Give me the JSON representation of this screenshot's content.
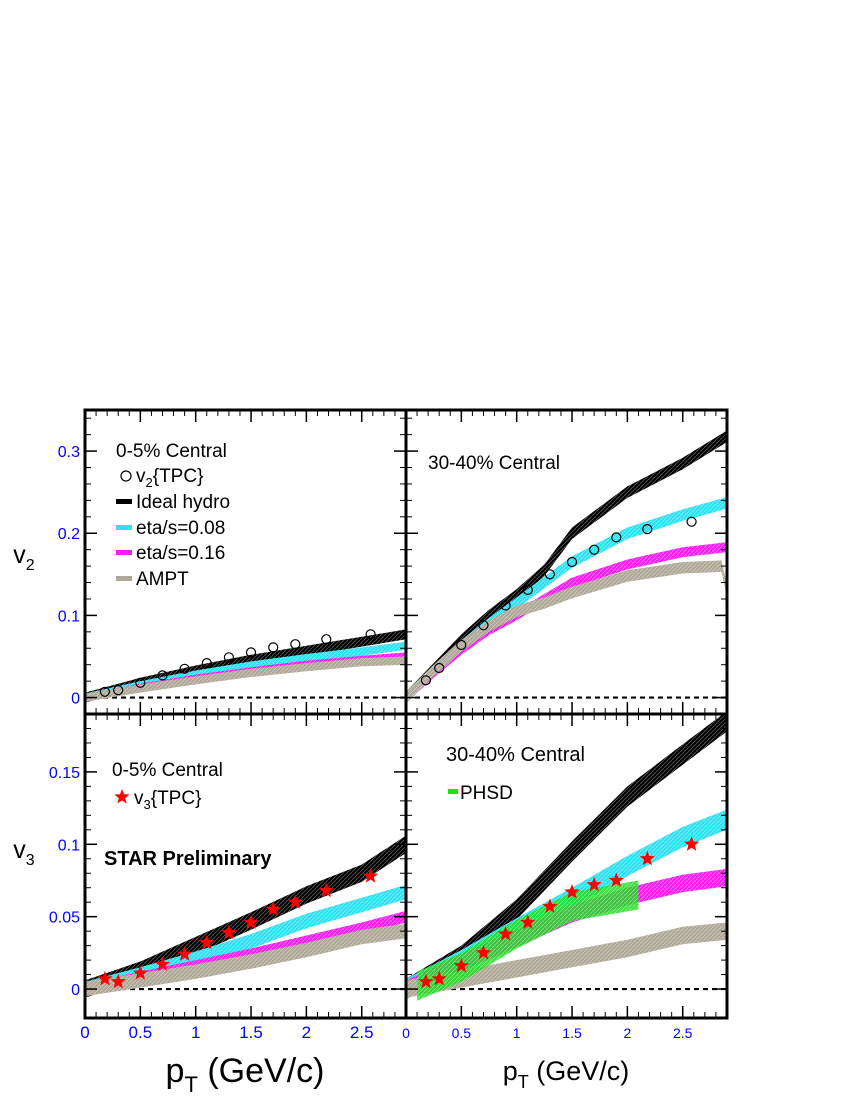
{
  "colors": {
    "frame": "#000000",
    "tick_label": "#0000ff",
    "ideal_hydro": "#000000",
    "eta_008": "#33e0f0",
    "eta_016": "#f020f0",
    "ampt": "#b0a898",
    "phsd": "#22dd22",
    "data_v2": "#000000",
    "data_v3": "#ff0000"
  },
  "axes": {
    "v2_label": "v",
    "v2_label_sub": "2",
    "v3_label": "v",
    "v3_label_sub": "3",
    "x_left_label_main": "p",
    "x_left_label_sub": "T",
    "x_left_label_unit": " (GeV/c)",
    "x_right_label_main": "p",
    "x_right_label_sub": "T",
    "x_right_label_unit": " (GeV/c)"
  },
  "texts": {
    "tl_centrality": "0-5% Central",
    "tr_centrality": "30-40% Central",
    "bl_centrality": "0-5% Central",
    "br_centrality": "30-40% Central",
    "star_preliminary": "STAR Preliminary"
  },
  "legend_top": [
    {
      "label_main": "v",
      "label_sub": "2",
      "label_rest": "{TPC}",
      "marker": "circle"
    },
    {
      "label_main": "Ideal hydro",
      "label_sub": "",
      "label_rest": "",
      "marker": "line",
      "color_key": "ideal_hydro"
    },
    {
      "label_main": "eta/s=0.08",
      "label_sub": "",
      "label_rest": "",
      "marker": "line",
      "color_key": "eta_008"
    },
    {
      "label_main": "eta/s=0.16",
      "label_sub": "",
      "label_rest": "",
      "marker": "line",
      "color_key": "eta_016"
    },
    {
      "label_main": "AMPT",
      "label_sub": "",
      "label_rest": "",
      "marker": "line",
      "color_key": "ampt"
    }
  ],
  "legend_bl": [
    {
      "label_main": "v",
      "label_sub": "3",
      "label_rest": "{TPC}",
      "marker": "star"
    }
  ],
  "legend_br": [
    {
      "label_main": "PHSD",
      "label_sub": "",
      "label_rest": "",
      "marker": "line",
      "color_key": "phsd"
    }
  ],
  "chart_data": [
    {
      "id": "v2_0_5",
      "type": "line",
      "row": 0,
      "col": 0,
      "xlim": [
        0,
        2.9
      ],
      "ylim": [
        -0.02,
        0.35
      ],
      "yticks": [
        0,
        0.1,
        0.2,
        0.3
      ],
      "ytick_labels": [
        "0",
        "0.1",
        "0.2",
        "0.3"
      ],
      "xticks": [
        0,
        0.5,
        1,
        1.5,
        2,
        2.5
      ],
      "bands": [
        {
          "name": "Ideal hydro",
          "color_key": "ideal_hydro",
          "x": [
            0,
            0.5,
            1,
            1.5,
            2,
            2.5,
            2.9
          ],
          "y": [
            0,
            0.018,
            0.033,
            0.046,
            0.057,
            0.068,
            0.077
          ],
          "w": 0.006
        },
        {
          "name": "eta/s=0.08",
          "color_key": "eta_008",
          "x": [
            0,
            0.5,
            1,
            1.5,
            2,
            2.5,
            2.9
          ],
          "y": [
            0,
            0.015,
            0.028,
            0.039,
            0.048,
            0.056,
            0.063
          ],
          "w": 0.005
        },
        {
          "name": "eta/s=0.16",
          "color_key": "eta_016",
          "x": [
            0,
            0.5,
            1,
            1.5,
            2,
            2.5,
            2.9
          ],
          "y": [
            0,
            0.013,
            0.024,
            0.033,
            0.041,
            0.047,
            0.051
          ],
          "w": 0.004
        },
        {
          "name": "AMPT",
          "color_key": "ampt",
          "x": [
            0,
            0.5,
            1,
            1.5,
            2,
            2.5,
            2.9
          ],
          "y": [
            0,
            0.011,
            0.021,
            0.03,
            0.037,
            0.043,
            0.045
          ],
          "w": 0.005
        }
      ],
      "points": {
        "marker": "circle",
        "color_key": "data_v2",
        "x": [
          0.18,
          0.3,
          0.5,
          0.7,
          0.9,
          1.1,
          1.3,
          1.5,
          1.7,
          1.9,
          2.18,
          2.58
        ],
        "y": [
          0.007,
          0.009,
          0.018,
          0.027,
          0.035,
          0.042,
          0.049,
          0.055,
          0.061,
          0.065,
          0.071,
          0.077
        ]
      }
    },
    {
      "id": "v2_30_40",
      "type": "line",
      "row": 0,
      "col": 1,
      "xlim": [
        0,
        2.9
      ],
      "ylim": [
        -0.02,
        0.35
      ],
      "yticks": [
        0,
        0.1,
        0.2,
        0.3
      ],
      "xticks": [
        0,
        0.5,
        1,
        1.5,
        2,
        2.5
      ],
      "bands": [
        {
          "name": "Ideal hydro",
          "color_key": "ideal_hydro",
          "x": [
            0,
            0.25,
            0.5,
            0.75,
            1,
            1.25,
            1.5,
            2,
            2.5,
            2.9
          ],
          "y": [
            0,
            0.035,
            0.07,
            0.1,
            0.125,
            0.155,
            0.2,
            0.25,
            0.285,
            0.318
          ],
          "w": 0.007
        },
        {
          "name": "eta/s=0.08",
          "color_key": "eta_008",
          "x": [
            0,
            0.25,
            0.5,
            0.75,
            1,
            1.25,
            1.5,
            2,
            2.5,
            2.9
          ],
          "y": [
            0,
            0.033,
            0.063,
            0.09,
            0.115,
            0.14,
            0.165,
            0.2,
            0.222,
            0.237
          ],
          "w": 0.007
        },
        {
          "name": "eta/s=0.16",
          "color_key": "eta_016",
          "x": [
            0,
            0.25,
            0.5,
            0.75,
            1,
            1.25,
            1.5,
            2,
            2.5,
            2.9
          ],
          "y": [
            0,
            0.03,
            0.058,
            0.082,
            0.1,
            0.12,
            0.14,
            0.162,
            0.177,
            0.183
          ],
          "w": 0.006
        },
        {
          "name": "AMPT",
          "color_key": "ampt",
          "x": [
            0,
            0.25,
            0.5,
            0.75,
            1,
            1.25,
            1.5,
            2,
            2.5,
            2.85,
            2.9
          ],
          "y": [
            0,
            0.033,
            0.063,
            0.087,
            0.105,
            0.115,
            0.128,
            0.148,
            0.158,
            0.16,
            0.13
          ],
          "w": 0.007
        }
      ],
      "points": {
        "marker": "circle",
        "color_key": "data_v2",
        "x": [
          0.18,
          0.3,
          0.5,
          0.7,
          0.9,
          1.1,
          1.3,
          1.5,
          1.7,
          1.9,
          2.18,
          2.58
        ],
        "y": [
          0.021,
          0.036,
          0.064,
          0.088,
          0.112,
          0.131,
          0.15,
          0.165,
          0.18,
          0.195,
          0.205,
          0.214
        ]
      }
    },
    {
      "id": "v3_0_5",
      "type": "line",
      "row": 1,
      "col": 0,
      "xlim": [
        0,
        2.9
      ],
      "ylim": [
        -0.02,
        0.19
      ],
      "yticks": [
        0,
        0.05,
        0.1,
        0.15
      ],
      "ytick_labels": [
        "0",
        "0.05",
        "0.1",
        "0.15"
      ],
      "xticks": [
        0,
        0.5,
        1,
        1.5,
        2,
        2.5
      ],
      "xtick_labels": [
        "0",
        "0.5",
        "1",
        "1.5",
        "2",
        "2.5"
      ],
      "bands": [
        {
          "name": "Ideal hydro",
          "color_key": "ideal_hydro",
          "x": [
            0,
            0.5,
            1,
            1.5,
            2,
            2.5,
            2.9
          ],
          "y": [
            0,
            0.013,
            0.03,
            0.047,
            0.065,
            0.08,
            0.1
          ],
          "w": 0.006
        },
        {
          "name": "eta/s=0.08",
          "color_key": "eta_008",
          "x": [
            0,
            0.5,
            1,
            1.5,
            2,
            2.5,
            2.9
          ],
          "y": [
            0,
            0.01,
            0.021,
            0.033,
            0.047,
            0.058,
            0.067
          ],
          "w": 0.005
        },
        {
          "name": "eta/s=0.16",
          "color_key": "eta_016",
          "x": [
            0,
            0.5,
            1,
            1.5,
            2,
            2.5,
            2.9
          ],
          "y": [
            0,
            0.008,
            0.016,
            0.024,
            0.033,
            0.042,
            0.05
          ],
          "w": 0.004
        },
        {
          "name": "AMPT",
          "color_key": "ampt",
          "x": [
            0,
            0.5,
            1,
            1.5,
            2,
            2.5,
            2.9
          ],
          "y": [
            0,
            0.006,
            0.012,
            0.019,
            0.027,
            0.036,
            0.04
          ],
          "w": 0.005
        }
      ],
      "points": {
        "marker": "star",
        "color_key": "data_v3",
        "x": [
          0.18,
          0.3,
          0.5,
          0.7,
          0.9,
          1.1,
          1.3,
          1.5,
          1.7,
          1.9,
          2.18,
          2.58
        ],
        "y": [
          0.007,
          0.005,
          0.011,
          0.017,
          0.024,
          0.032,
          0.039,
          0.046,
          0.055,
          0.06,
          0.068,
          0.078
        ]
      }
    },
    {
      "id": "v3_30_40",
      "type": "line",
      "row": 1,
      "col": 1,
      "xlim": [
        0,
        2.9
      ],
      "ylim": [
        -0.02,
        0.19
      ],
      "yticks": [
        0,
        0.05,
        0.1,
        0.15
      ],
      "xticks": [
        0,
        0.5,
        1,
        1.5,
        2,
        2.5
      ],
      "xtick_labels": [
        "0",
        "0.5",
        "1",
        "1.5",
        "2",
        "2.5"
      ],
      "bands": [
        {
          "name": "Ideal hydro",
          "color_key": "ideal_hydro",
          "x": [
            0,
            0.5,
            1,
            1.5,
            2,
            2.5,
            2.9
          ],
          "y": [
            0,
            0.023,
            0.055,
            0.095,
            0.133,
            0.162,
            0.185
          ],
          "w": 0.007
        },
        {
          "name": "eta/s=0.08",
          "color_key": "eta_008",
          "x": [
            0,
            0.5,
            1,
            1.5,
            2,
            2.5,
            2.9
          ],
          "y": [
            0,
            0.02,
            0.042,
            0.063,
            0.085,
            0.105,
            0.117
          ],
          "w": 0.007
        },
        {
          "name": "eta/s=0.16",
          "color_key": "eta_016",
          "x": [
            0,
            0.5,
            1,
            1.5,
            2,
            2.5,
            2.9
          ],
          "y": [
            0,
            0.018,
            0.035,
            0.052,
            0.064,
            0.073,
            0.077
          ],
          "w": 0.006
        },
        {
          "name": "AMPT",
          "color_key": "ampt",
          "x": [
            0,
            0.5,
            1,
            1.5,
            2,
            2.5,
            2.9
          ],
          "y": [
            0,
            0.007,
            0.014,
            0.021,
            0.028,
            0.037,
            0.04
          ],
          "w": 0.006
        },
        {
          "name": "PHSD",
          "color_key": "phsd",
          "x": [
            0.1,
            0.5,
            1,
            1.5,
            2.1
          ],
          "y": [
            0.002,
            0.015,
            0.038,
            0.057,
            0.065
          ],
          "w": 0.01
        }
      ],
      "points": {
        "marker": "star",
        "color_key": "data_v3",
        "x": [
          0.18,
          0.3,
          0.5,
          0.7,
          0.9,
          1.1,
          1.3,
          1.5,
          1.7,
          1.9,
          2.18,
          2.58
        ],
        "y": [
          0.005,
          0.007,
          0.016,
          0.025,
          0.038,
          0.046,
          0.057,
          0.067,
          0.072,
          0.075,
          0.09,
          0.1
        ]
      }
    }
  ]
}
